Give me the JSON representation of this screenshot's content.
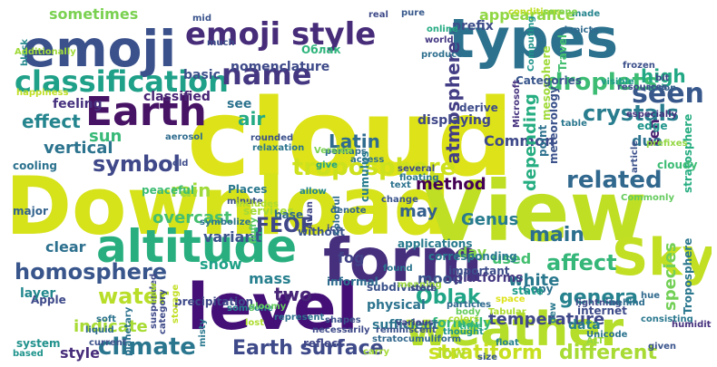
{
  "words": [
    {
      "text": "cloud",
      "color": "#dde318"
    },
    {
      "text": "Download",
      "color": "#d6e21a"
    },
    {
      "text": "View",
      "color": "#bfdf25"
    },
    {
      "text": "form",
      "color": "#46307e"
    },
    {
      "text": "level",
      "color": "#440f76"
    },
    {
      "text": "types",
      "color": "#2c718e"
    },
    {
      "text": "emoji",
      "color": "#3b518b"
    },
    {
      "text": "Earth",
      "color": "#471365"
    },
    {
      "text": "weather",
      "color": "#b5de2b"
    },
    {
      "text": "altitude",
      "color": "#29af7f"
    },
    {
      "text": "Sky",
      "color": "#c2df23"
    },
    {
      "text": "emoji style",
      "color": "#472c7a"
    },
    {
      "text": "classification",
      "color": "#1fa088"
    },
    {
      "text": "name",
      "color": "#453781"
    },
    {
      "text": "seen",
      "color": "#38588c"
    },
    {
      "text": "crystals",
      "color": "#287d8e"
    },
    {
      "text": "droplets",
      "color": "#3dbc74"
    },
    {
      "text": "troposphere",
      "color": "#cde11d"
    },
    {
      "text": "related",
      "color": "#31688e"
    },
    {
      "text": "climate",
      "color": "#2a768e"
    },
    {
      "text": "water",
      "color": "#b8de29"
    },
    {
      "text": "Earth surface",
      "color": "#3e4a89"
    },
    {
      "text": "homosphere",
      "color": "#39568c"
    },
    {
      "text": "FEOF",
      "color": "#3f4788"
    },
    {
      "text": "genera",
      "color": "#26828e"
    },
    {
      "text": "stratiform",
      "color": "#c8e020"
    },
    {
      "text": "different",
      "color": "#a8db34"
    },
    {
      "text": "Oblak",
      "color": "#20a486"
    },
    {
      "text": "main",
      "color": "#2d708e"
    },
    {
      "text": "affect",
      "color": "#35b779"
    },
    {
      "text": "symbol",
      "color": "#3f4889"
    },
    {
      "text": "atmosphere",
      "color": "#433e85"
    },
    {
      "text": "Latin",
      "color": "#2f6b8e"
    },
    {
      "text": "effect",
      "color": "#25858e"
    },
    {
      "text": "sun",
      "color": "#38b977"
    },
    {
      "text": "vertical",
      "color": "#2c738e"
    },
    {
      "text": "rain",
      "color": "#a0da39"
    },
    {
      "text": "overcast",
      "color": "#44bf70"
    },
    {
      "text": "method",
      "color": "#440154"
    },
    {
      "text": "Genus",
      "color": "#287c8e"
    },
    {
      "text": "may",
      "color": "#34608d"
    },
    {
      "text": "day",
      "color": "#84d44b"
    },
    {
      "text": "white",
      "color": "#2a788e"
    },
    {
      "text": "temperature",
      "color": "#3f4889"
    },
    {
      "text": "species",
      "color": "#73d056"
    },
    {
      "text": "mood",
      "color": "#3a548c"
    },
    {
      "text": "two",
      "color": "#482677"
    },
    {
      "text": "fog",
      "color": "#414287"
    },
    {
      "text": "mass",
      "color": "#27808e"
    },
    {
      "text": "variant",
      "color": "#3b528b"
    },
    {
      "text": "air",
      "color": "#24aa83"
    },
    {
      "text": "high",
      "color": "#22a884"
    },
    {
      "text": "appearance",
      "color": "#90d743"
    },
    {
      "text": "Common",
      "color": "#3e4989"
    },
    {
      "text": "depending",
      "color": "#26ad81"
    },
    {
      "text": "due",
      "color": "#2c738e"
    },
    {
      "text": "ten",
      "color": "#481f70"
    },
    {
      "text": "low",
      "color": "#b8de29"
    },
    {
      "text": "indicate",
      "color": "#a8db34"
    },
    {
      "text": "style",
      "color": "#472d7b"
    },
    {
      "text": "snow",
      "color": "#1fa187"
    },
    {
      "text": "clear",
      "color": "#2d708e"
    },
    {
      "text": "used",
      "color": "#44bf70"
    },
    {
      "text": "feeling",
      "color": "#46307e"
    },
    {
      "text": "sometimes",
      "color": "#7ad151"
    },
    {
      "text": "basic",
      "color": "#3c508b"
    },
    {
      "text": "classified",
      "color": "#482475"
    },
    {
      "text": "see",
      "color": "#2c728e"
    },
    {
      "text": "prefix",
      "color": "#3d4d8a"
    },
    {
      "text": "nomenclature",
      "color": "#3e4a89"
    },
    {
      "text": "derive",
      "color": "#3e4c8a"
    },
    {
      "text": "displaying",
      "color": "#3f4788"
    },
    {
      "text": "edge",
      "color": "#1f958b"
    },
    {
      "text": "point",
      "color": "#2d718e"
    },
    {
      "text": "meteorology",
      "color": "#3b528b"
    },
    {
      "text": "mesosphere",
      "color": "#9fda3a"
    },
    {
      "text": "stratosphere",
      "color": "#26ad81"
    },
    {
      "text": "cloudy",
      "color": "#3dbc74"
    },
    {
      "text": "Troposphere",
      "color": "#2a778e"
    },
    {
      "text": "physical",
      "color": "#2c738e"
    },
    {
      "text": "formally",
      "color": "#34b679"
    },
    {
      "text": "platforms",
      "color": "#453882"
    },
    {
      "text": "informal",
      "color": "#2e6d8e"
    },
    {
      "text": "subdivided",
      "color": "#3b528b"
    },
    {
      "text": "sufficient",
      "color": "#2b758e"
    },
    {
      "text": "cumulus",
      "color": "#287d8e"
    },
    {
      "text": "Places",
      "color": "#2a788e"
    },
    {
      "text": "Apple",
      "color": "#3e4989"
    },
    {
      "text": "layer",
      "color": "#23888e"
    },
    {
      "text": "system",
      "color": "#21918c"
    },
    {
      "text": "cooling",
      "color": "#2c728e"
    },
    {
      "text": "major",
      "color": "#33638d"
    },
    {
      "text": "Categories",
      "color": "#39568c"
    },
    {
      "text": "Travel",
      "color": "#44bf70"
    },
    {
      "text": "Computing",
      "color": "#1f948c"
    },
    {
      "text": "Microsoft",
      "color": "#46327e"
    },
    {
      "text": "Облак",
      "color": "#2fb47c"
    },
    {
      "text": "mid",
      "color": "#3a548c"
    },
    {
      "text": "much",
      "color": "#3d4e8a"
    },
    {
      "text": "online",
      "color": "#25ab82"
    },
    {
      "text": "world",
      "color": "#443983"
    },
    {
      "text": "conditions",
      "color": "#bddf26"
    },
    {
      "text": "depicts",
      "color": "#306a8e"
    },
    {
      "text": "made",
      "color": "#25858e"
    },
    {
      "text": "visible",
      "color": "#1f9a8a"
    },
    {
      "text": "serene",
      "color": "#7fd34e"
    },
    {
      "text": "real",
      "color": "#3e4a89"
    },
    {
      "text": "pure",
      "color": "#38598c"
    },
    {
      "text": "produce",
      "color": "#2e6f8e"
    },
    {
      "text": "frozen",
      "color": "#3c4f8a"
    },
    {
      "text": "resources",
      "color": "#3e4a89"
    },
    {
      "text": "moon",
      "color": "#34618d"
    },
    {
      "text": "bit",
      "color": "#3f4788"
    },
    {
      "text": "especially",
      "color": "#46337f"
    },
    {
      "text": "perhaps",
      "color": "#2e6f8e"
    },
    {
      "text": "rounded",
      "color": "#3b518b"
    },
    {
      "text": "aerosol",
      "color": "#2f6c8e"
    },
    {
      "text": "black",
      "color": "#23898e"
    },
    {
      "text": "Additionally",
      "color": "#a0da39"
    },
    {
      "text": "happiness",
      "color": "#c0df25"
    },
    {
      "text": "old",
      "color": "#3e4c8a"
    },
    {
      "text": "relaxation",
      "color": "#2b758e"
    },
    {
      "text": "allow",
      "color": "#24868e"
    },
    {
      "text": "change",
      "color": "#3a548c"
    },
    {
      "text": "several",
      "color": "#3e4a89"
    },
    {
      "text": "text",
      "color": "#2c728e"
    },
    {
      "text": "access",
      "color": "#2c728e"
    },
    {
      "text": "table",
      "color": "#2a778e"
    },
    {
      "text": "article",
      "color": "#3b518b"
    },
    {
      "text": "prefixes",
      "color": "#93d741"
    },
    {
      "text": "Commonly",
      "color": "#65cb5e"
    },
    {
      "text": "peaceful",
      "color": "#3dbc74"
    },
    {
      "text": "minute",
      "color": "#3b528b"
    },
    {
      "text": "includes",
      "color": "#addc30"
    },
    {
      "text": "services",
      "color": "#a5db36"
    },
    {
      "text": "symbolize",
      "color": "#2c738e"
    },
    {
      "text": "Version",
      "color": "#7ad151"
    },
    {
      "text": "floating",
      "color": "#2b758e"
    },
    {
      "text": "give",
      "color": "#20a386"
    },
    {
      "text": "denote",
      "color": "#32658e"
    },
    {
      "text": "base",
      "color": "#30688e"
    },
    {
      "text": "without",
      "color": "#3a538b"
    },
    {
      "text": "fluffy",
      "color": "#58c765"
    },
    {
      "text": "Awan",
      "color": "#3f4788"
    },
    {
      "text": "ice",
      "color": "#3d4d8a"
    },
    {
      "text": "colorful",
      "color": "#2f6b8e"
    },
    {
      "text": "applications",
      "color": "#297a8e"
    },
    {
      "text": "corresponding",
      "color": "#2a788e"
    },
    {
      "text": "important",
      "color": "#3d4d8a"
    },
    {
      "text": "Copy",
      "color": "#2c728e"
    },
    {
      "text": "space",
      "color": "#dde318"
    },
    {
      "text": "dew",
      "color": "#2a788e"
    },
    {
      "text": "lightning",
      "color": "#3e4a89"
    },
    {
      "text": "behind",
      "color": "#2e6e8e"
    },
    {
      "text": "consisting",
      "color": "#2a788e"
    },
    {
      "text": "humidity",
      "color": "#46317e"
    },
    {
      "text": "given",
      "color": "#3a548c"
    },
    {
      "text": "hue",
      "color": "#306a8e"
    },
    {
      "text": "ALT",
      "color": "#93d741"
    },
    {
      "text": "body",
      "color": "#65cb5e"
    },
    {
      "text": "meaning",
      "color": "#9bd93c"
    },
    {
      "text": "found",
      "color": "#2b758e"
    },
    {
      "text": "store",
      "color": "#3e4a89"
    },
    {
      "text": "state",
      "color": "#1e9c89"
    },
    {
      "text": "internet",
      "color": "#3e4c8a"
    },
    {
      "text": "data",
      "color": "#287d8e"
    },
    {
      "text": "Tabular",
      "color": "#addc30"
    },
    {
      "text": "Unicode",
      "color": "#2c738e"
    },
    {
      "text": "various",
      "color": "#414487"
    },
    {
      "text": "stratocumuliform",
      "color": "#31688e"
    },
    {
      "text": "reflect",
      "color": "#3f4788"
    },
    {
      "text": "carry",
      "color": "#a5db36"
    },
    {
      "text": "float",
      "color": "#26828e"
    },
    {
      "text": "size",
      "color": "#38598c"
    },
    {
      "text": "colors",
      "color": "#addc30"
    },
    {
      "text": "thought",
      "color": "#1f948c"
    },
    {
      "text": "time",
      "color": "#2fb47c"
    },
    {
      "text": "particles",
      "color": "#306a8e"
    },
    {
      "text": "represent",
      "color": "#2d708e"
    },
    {
      "text": "shapes",
      "color": "#3b528b"
    },
    {
      "text": "necessarily",
      "color": "#3e4a89"
    },
    {
      "text": "reminiscent",
      "color": "#3b518b"
    },
    {
      "text": "lost",
      "color": "#addc30"
    },
    {
      "text": "someone",
      "color": "#26828e"
    },
    {
      "text": "suspended",
      "color": "#3e4989"
    },
    {
      "text": "soft",
      "color": "#2c738e"
    },
    {
      "text": "liquid",
      "color": "#2f6b8e"
    },
    {
      "text": "based",
      "color": "#1f948c"
    },
    {
      "text": "current",
      "color": "#3b518b"
    },
    {
      "text": "category",
      "color": "#3e4a89"
    },
    {
      "text": "precipitation",
      "color": "#3e4989"
    },
    {
      "text": "new",
      "color": "#addc30"
    },
    {
      "text": "gloomy",
      "color": "#65cb5e"
    },
    {
      "text": "misty",
      "color": "#2a788e"
    },
    {
      "text": "storage",
      "color": "#c2df23"
    },
    {
      "text": "planetary",
      "color": "#2c728e"
    }
  ]
}
